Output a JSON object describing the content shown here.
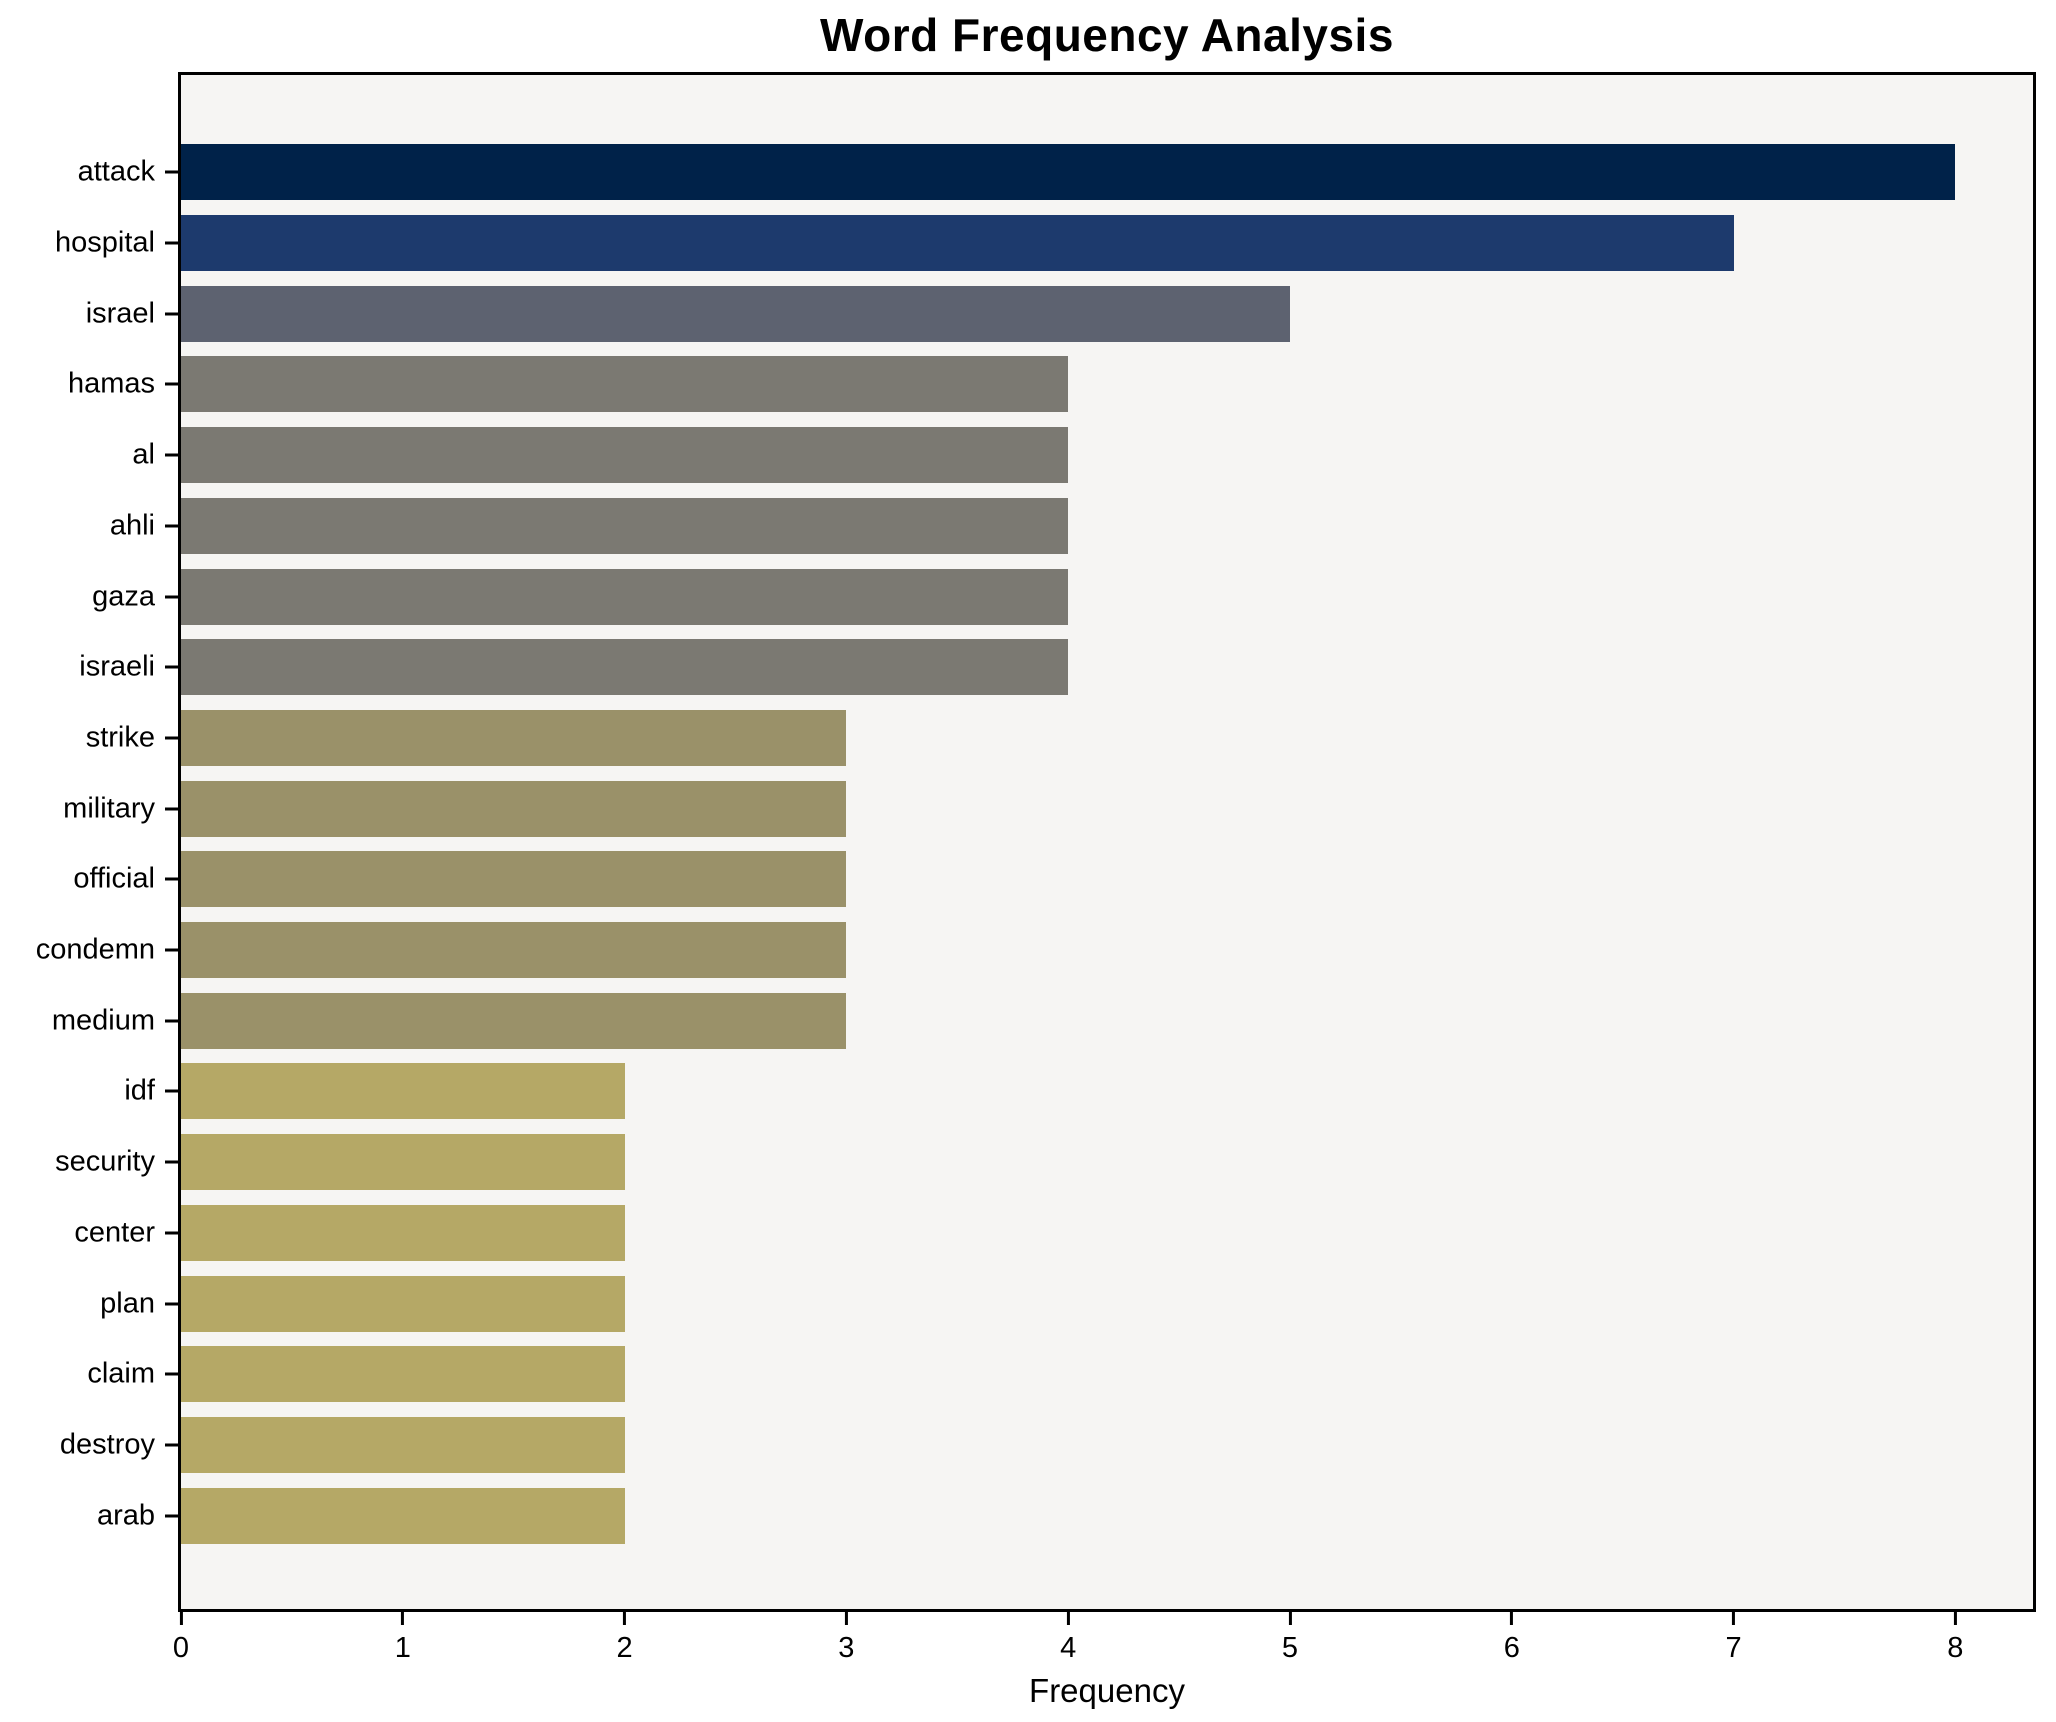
{
  "chart_data": {
    "type": "bar",
    "orientation": "horizontal",
    "title": "Word Frequency Analysis",
    "xlabel": "Frequency",
    "ylabel": "",
    "categories": [
      "attack",
      "hospital",
      "israel",
      "hamas",
      "al",
      "ahli",
      "gaza",
      "israeli",
      "strike",
      "military",
      "official",
      "condemn",
      "medium",
      "idf",
      "security",
      "center",
      "plan",
      "claim",
      "destroy",
      "arab"
    ],
    "values": [
      8,
      7,
      5,
      4,
      4,
      4,
      4,
      4,
      3,
      3,
      3,
      3,
      3,
      2,
      2,
      2,
      2,
      2,
      2,
      2
    ],
    "bar_colors": [
      "#002249",
      "#1d3a6d",
      "#5d6270",
      "#7b7972",
      "#7b7972",
      "#7b7972",
      "#7b7972",
      "#7b7972",
      "#9a9169",
      "#9a9169",
      "#9a9169",
      "#9a9169",
      "#9a9169",
      "#b5a866",
      "#b5a866",
      "#b5a866",
      "#b5a866",
      "#b5a866",
      "#b5a866",
      "#b5a866"
    ],
    "xticks": [
      0,
      1,
      2,
      3,
      4,
      5,
      6,
      7,
      8
    ],
    "xlim": [
      0,
      8.35
    ],
    "grid": false,
    "legend_position": "none"
  },
  "style": {
    "plot_bg": "#f6f5f3",
    "figure_bg": "#ffffff",
    "axis_color": "#000000",
    "text_color": "#000000"
  }
}
